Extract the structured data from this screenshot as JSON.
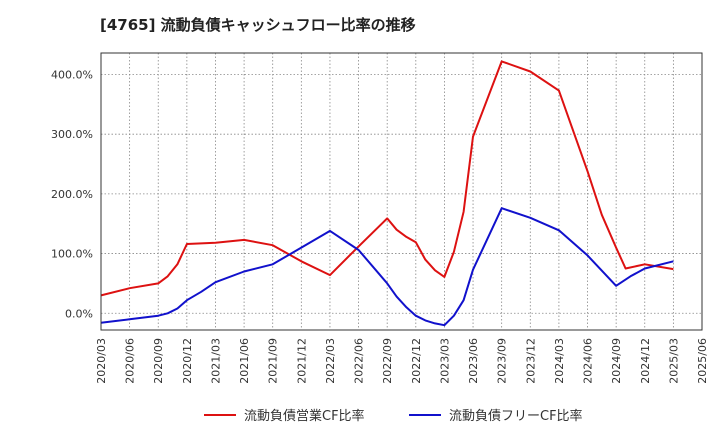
{
  "chart_data": {
    "type": "line",
    "title": "[4765]  流動負債キャッシュフロー比率の推移",
    "x_labels": [
      "2020/03",
      "2020/06",
      "2020/09",
      "2020/12",
      "2021/03",
      "2021/06",
      "2021/09",
      "2021/12",
      "2022/03",
      "2022/06",
      "2022/09",
      "2022/12",
      "2023/03",
      "2023/06",
      "2023/09",
      "2023/12",
      "2024/03",
      "2024/06",
      "2024/09",
      "2024/12",
      "2025/03",
      "2025/06"
    ],
    "y_ticks": [
      0,
      100,
      200,
      300,
      400
    ],
    "y_tick_labels": [
      "0.0%",
      "100.0%",
      "200.0%",
      "300.0%",
      "400.0%"
    ],
    "ylim": [
      -28,
      436
    ],
    "series": [
      {
        "name": "流動負債営業CF比率",
        "color": "#dd1111",
        "points": [
          [
            0,
            30
          ],
          [
            1,
            42
          ],
          [
            2,
            50
          ],
          [
            2.33,
            62
          ],
          [
            2.67,
            82
          ],
          [
            3,
            116
          ],
          [
            3.5,
            117
          ],
          [
            4,
            118
          ],
          [
            5,
            123
          ],
          [
            6,
            114
          ],
          [
            7,
            87
          ],
          [
            8,
            64
          ],
          [
            9,
            112
          ],
          [
            10,
            159
          ],
          [
            10.33,
            140
          ],
          [
            10.67,
            128
          ],
          [
            11,
            119
          ],
          [
            11.33,
            90
          ],
          [
            11.67,
            72
          ],
          [
            12,
            61
          ],
          [
            12.33,
            103
          ],
          [
            12.67,
            170
          ],
          [
            13,
            296
          ],
          [
            14,
            422
          ],
          [
            15,
            405
          ],
          [
            16,
            373
          ],
          [
            17,
            238
          ],
          [
            17.5,
            165
          ],
          [
            18,
            110
          ],
          [
            18.33,
            75
          ],
          [
            19,
            82
          ],
          [
            20,
            74
          ]
        ]
      },
      {
        "name": "流動負債フリーCF比率",
        "color": "#1111cc",
        "points": [
          [
            0,
            -16
          ],
          [
            1,
            -10
          ],
          [
            2,
            -4
          ],
          [
            2.33,
            0
          ],
          [
            2.67,
            8
          ],
          [
            3,
            22
          ],
          [
            3.5,
            36
          ],
          [
            4,
            52
          ],
          [
            5,
            70
          ],
          [
            6,
            82
          ],
          [
            7,
            110
          ],
          [
            8,
            138
          ],
          [
            9,
            106
          ],
          [
            10,
            50
          ],
          [
            10.33,
            28
          ],
          [
            10.67,
            10
          ],
          [
            11,
            -4
          ],
          [
            11.33,
            -12
          ],
          [
            11.67,
            -17
          ],
          [
            12,
            -20
          ],
          [
            12.33,
            -4
          ],
          [
            12.67,
            22
          ],
          [
            13,
            73
          ],
          [
            14,
            176
          ],
          [
            15,
            160
          ],
          [
            16,
            139
          ],
          [
            17,
            97
          ],
          [
            18,
            46
          ],
          [
            18.5,
            62
          ],
          [
            19,
            75
          ],
          [
            20,
            87
          ]
        ]
      }
    ]
  }
}
